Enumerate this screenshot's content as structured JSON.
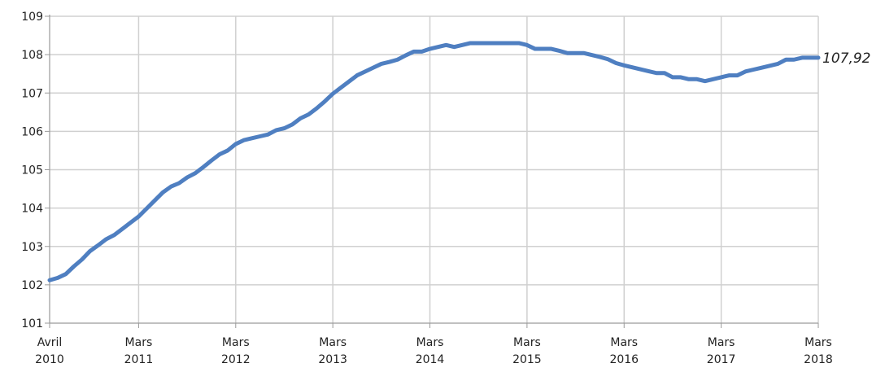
{
  "chart_data": {
    "type": "line",
    "title": "",
    "xlabel": "",
    "ylabel": "",
    "ylim": [
      101,
      109
    ],
    "yticks": [
      "101",
      "102",
      "103",
      "104",
      "105",
      "106",
      "107",
      "108",
      "109"
    ],
    "xticks": [
      {
        "month": "Avril",
        "year": "2010"
      },
      {
        "month": "Mars",
        "year": "2011"
      },
      {
        "month": "Mars",
        "year": "2012"
      },
      {
        "month": "Mars",
        "year": "2013"
      },
      {
        "month": "Mars",
        "year": "2014"
      },
      {
        "month": "Mars",
        "year": "2015"
      },
      {
        "month": "Mars",
        "year": "2016"
      },
      {
        "month": "Mars",
        "year": "2017"
      },
      {
        "month": "Mars",
        "year": "2018"
      }
    ],
    "grid": true,
    "end_label": "107,92",
    "line_color": "#4f7fc1",
    "series": [
      {
        "x": [
          "2010-04",
          "2010-05",
          "2010-06",
          "2010-07",
          "2010-08",
          "2010-09",
          "2010-10",
          "2010-11",
          "2010-12",
          "2011-01",
          "2011-02",
          "2011-03",
          "2011-04",
          "2011-05",
          "2011-06",
          "2011-07",
          "2011-08",
          "2011-09",
          "2011-10",
          "2011-11",
          "2011-12",
          "2012-01",
          "2012-02",
          "2012-03",
          "2012-04",
          "2012-05",
          "2012-06",
          "2012-07",
          "2012-08",
          "2012-09",
          "2012-10",
          "2012-11",
          "2012-12",
          "2013-01",
          "2013-02",
          "2013-03",
          "2013-04",
          "2013-05",
          "2013-06",
          "2013-07",
          "2013-08",
          "2013-09",
          "2013-10",
          "2013-11",
          "2013-12",
          "2014-01",
          "2014-02",
          "2014-03",
          "2014-04",
          "2014-05",
          "2014-06",
          "2014-07",
          "2014-08",
          "2014-09",
          "2014-10",
          "2014-11",
          "2014-12",
          "2015-01",
          "2015-02",
          "2015-03",
          "2015-04",
          "2015-05",
          "2015-06",
          "2015-07",
          "2015-08",
          "2015-09",
          "2015-10",
          "2015-11",
          "2015-12",
          "2016-01",
          "2016-02",
          "2016-03",
          "2016-04",
          "2016-05",
          "2016-06",
          "2016-07",
          "2016-08",
          "2016-09",
          "2016-10",
          "2016-11",
          "2016-12",
          "2017-01",
          "2017-02",
          "2017-03",
          "2017-04",
          "2017-05",
          "2017-06",
          "2017-07",
          "2017-08",
          "2017-09",
          "2017-10",
          "2017-11",
          "2017-12",
          "2018-01",
          "2018-02",
          "2018-03"
        ],
        "values": [
          102.12,
          102.18,
          102.28,
          102.48,
          102.66,
          102.88,
          103.03,
          103.19,
          103.3,
          103.46,
          103.62,
          103.78,
          103.99,
          104.2,
          104.41,
          104.56,
          104.65,
          104.8,
          104.91,
          105.07,
          105.24,
          105.4,
          105.5,
          105.67,
          105.77,
          105.82,
          105.87,
          105.92,
          106.03,
          106.08,
          106.18,
          106.34,
          106.44,
          106.6,
          106.78,
          106.98,
          107.14,
          107.3,
          107.46,
          107.56,
          107.66,
          107.76,
          107.81,
          107.87,
          107.98,
          108.08,
          108.08,
          108.15,
          108.2,
          108.25,
          108.2,
          108.25,
          108.3,
          108.3,
          108.3,
          108.3,
          108.3,
          108.3,
          108.3,
          108.25,
          108.15,
          108.15,
          108.15,
          108.1,
          108.04,
          108.04,
          108.04,
          107.99,
          107.94,
          107.88,
          107.78,
          107.72,
          107.67,
          107.62,
          107.57,
          107.52,
          107.52,
          107.41,
          107.41,
          107.36,
          107.36,
          107.31,
          107.36,
          107.41,
          107.46,
          107.46,
          107.56,
          107.61,
          107.66,
          107.71,
          107.76,
          107.87,
          107.87,
          107.92,
          107.92,
          107.92
        ]
      }
    ]
  }
}
